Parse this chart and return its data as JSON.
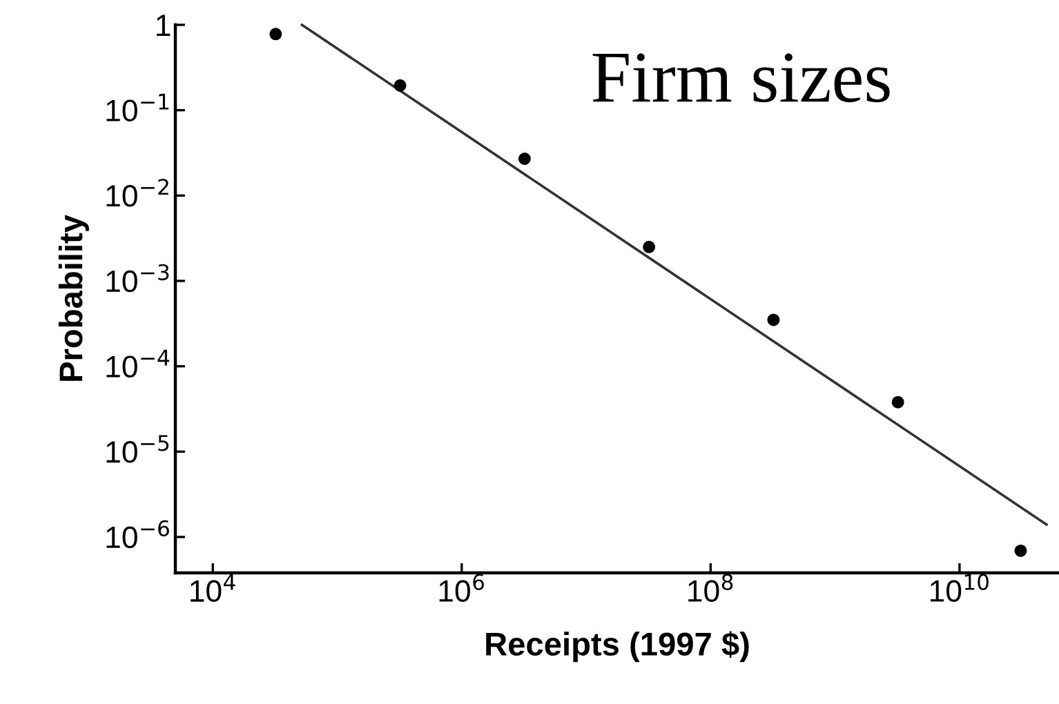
{
  "chart_data": {
    "type": "scatter",
    "xlabel": "Receipts (1997 $)",
    "ylabel": "Probability",
    "log": "xy",
    "grid": false,
    "marker": "circle",
    "xlim": [
      5000,
      63000000000
    ],
    "ylim": [
      3.8e-07,
      1
    ],
    "xticks": [
      {
        "value": 10000,
        "label": "10$^{4}$"
      },
      {
        "value": 1000000,
        "label": "10$^{6}$"
      },
      {
        "value": 100000000,
        "label": "10$^{8}$"
      },
      {
        "value": 10000000000,
        "label": "10$^{10}$"
      }
    ],
    "yticks": [
      1,
      {
        "value": 0.1,
        "label": "10$^{−1}$"
      },
      {
        "value": 0.01,
        "label": "10$^{−2}$"
      },
      {
        "value": 0.001,
        "label": "10$^{−3}$"
      },
      {
        "value": 0.0001,
        "label": "10$^{−4}$"
      },
      {
        "value": 1e-05,
        "label": "10$^{−5}$"
      },
      {
        "value": 1e-06,
        "label": "10$^{−6}$"
      }
    ],
    "annotations": [
      "Firm sizes"
    ],
    "series": [
      {
        "color": "#000000",
        "x": [
          32000,
          320000,
          3200000,
          32000000,
          320000000,
          3200000000,
          31000000000
        ],
        "values": [
          0.78,
          0.195,
          0.027,
          0.0025,
          0.00035,
          3.8e-05,
          6.9e-07
        ]
      },
      {
        "type": "line",
        "color": "#333333",
        "marker": "none",
        "line_style": "solid",
        "x": [
          52000,
          50000000000
        ],
        "values": [
          1,
          1.4e-06
        ]
      }
    ]
  }
}
